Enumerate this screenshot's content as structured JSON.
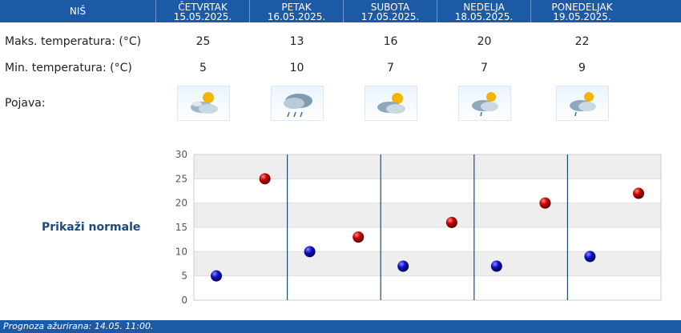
{
  "header": {
    "city": "NIŠ",
    "days": [
      {
        "name": "ČETVRTAK",
        "date": "15.05.2025."
      },
      {
        "name": "PETAK",
        "date": "16.05.2025."
      },
      {
        "name": "SUBOTA",
        "date": "17.05.2025."
      },
      {
        "name": "NEDELJA",
        "date": "18.05.2025."
      },
      {
        "name": "PONEDELJAK",
        "date": "19.05.2025."
      }
    ]
  },
  "rows": {
    "max_label": "Maks. temperatura: (°C)",
    "min_label": "Min. temperatura: (°C)",
    "phenomenon_label": "Pojava:",
    "max_values": [
      "25",
      "13",
      "16",
      "20",
      "22"
    ],
    "min_values": [
      "5",
      "10",
      "7",
      "7",
      "9"
    ],
    "icons": [
      "partly-cloudy-sun-icon",
      "cloud-rain-icon",
      "partly-cloudy-sun-icon",
      "cloud-sun-drizzle-icon",
      "cloud-sun-drizzle-icon"
    ]
  },
  "normals_link": "Prikaži normale",
  "footer": "Prognoza ažurirana:  14.05. 11:00.",
  "colors": {
    "header_bg": "#1d5aa6",
    "min_dot": "#1010c8",
    "max_dot": "#cc0000",
    "grid_band": "#eeeeee",
    "divider": "#1d4a7a"
  },
  "chart_data": {
    "type": "scatter",
    "categories": [
      "ČETVRTAK",
      "PETAK",
      "SUBOTA",
      "NEDELJA",
      "PONEDELJAK"
    ],
    "series": [
      {
        "values": [
          5,
          10,
          7,
          7,
          9
        ]
      },
      {
        "values": [
          25,
          13,
          16,
          20,
          22
        ]
      }
    ],
    "yticks": [
      "0",
      "5",
      "10",
      "15",
      "20",
      "25",
      "30"
    ],
    "ylim": [
      0,
      30
    ],
    "grid": true,
    "legend": "none"
  }
}
